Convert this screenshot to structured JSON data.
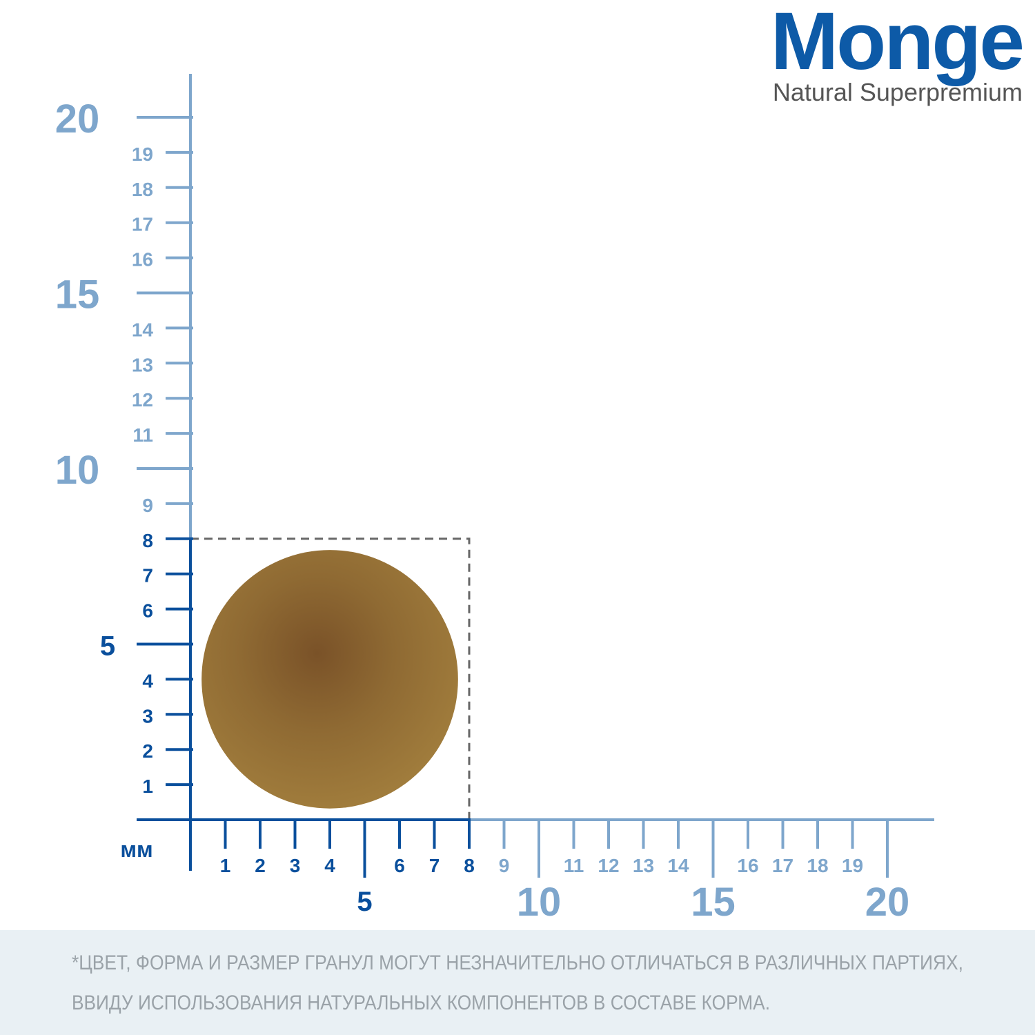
{
  "logo": {
    "brand": "Monge",
    "tagline": "Natural Superpremium"
  },
  "ruler": {
    "unit": "мм",
    "ticks": [
      1,
      2,
      3,
      4,
      5,
      6,
      7,
      8,
      9,
      10,
      11,
      12,
      13,
      14,
      15,
      16,
      17,
      18,
      19,
      20
    ],
    "kibble_size": 8
  },
  "note": [
    "*ЦВЕТ, ФОРМА И РАЗМЕР ГРАНУЛ МОГУТ НЕЗНАЧИТЕЛЬНО ОТЛИЧАТЬСЯ В РАЗЛИЧНЫХ ПАРТИЯХ,",
    "ВВИДУ ИСПОЛЬЗОВАНИЯ НАТУРАЛЬНЫХ КОМПОНЕНТОВ В СОСТАВЕ КОРМА."
  ]
}
